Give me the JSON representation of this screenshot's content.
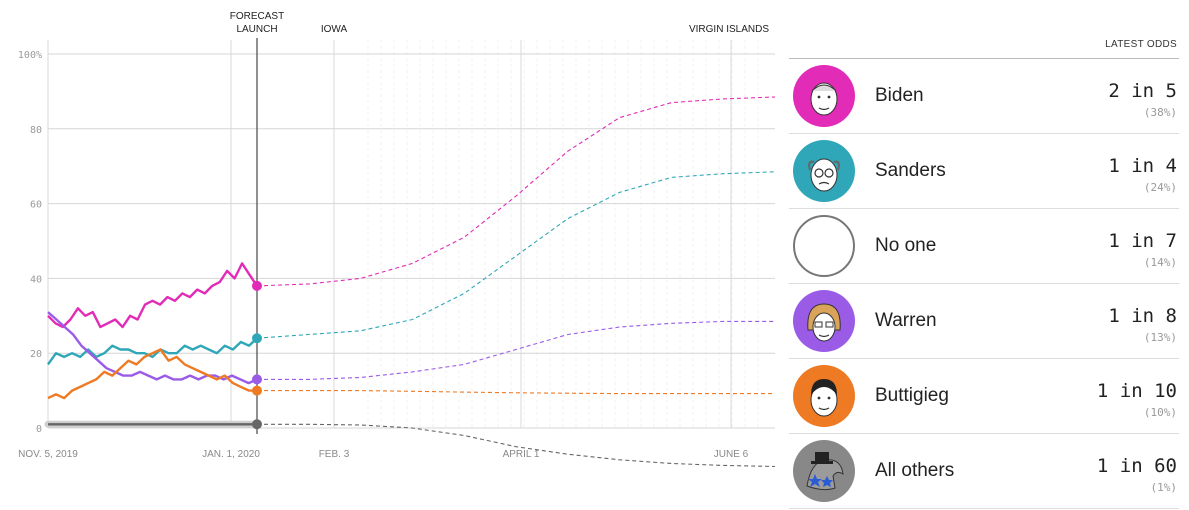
{
  "chart_data": {
    "type": "line",
    "title": "",
    "ylim": [
      0,
      100
    ],
    "y_ticks": [
      "100%",
      "80",
      "60",
      "40",
      "20",
      "0"
    ],
    "x_ticks": [
      "NOV. 5, 2019",
      "JAN. 1, 2020",
      "FEB. 3",
      "APRIL 1",
      "JUNE 6"
    ],
    "markers": [
      "FORECAST",
      "LAUNCH",
      "IOWA",
      "VIRGIN ISLANDS"
    ],
    "series": [
      {
        "name": "Biden",
        "color": "#e22bb6",
        "history": [
          30,
          28,
          27,
          29,
          32,
          30,
          31,
          27,
          28,
          29,
          27,
          30,
          29,
          33,
          34,
          33,
          35,
          34,
          36,
          35,
          37,
          36,
          38,
          39,
          42,
          40,
          44,
          41,
          38
        ],
        "projection": [
          38,
          38.5,
          40,
          44,
          51,
          62,
          74,
          83,
          87,
          88,
          88.5
        ]
      },
      {
        "name": "Sanders",
        "color": "#2fa7b8",
        "history": [
          17,
          20,
          19,
          20,
          19,
          21,
          19,
          20,
          22,
          21,
          21,
          20,
          20,
          19,
          21,
          20,
          20,
          22,
          21,
          22,
          21,
          20,
          22,
          21,
          23,
          22,
          24
        ],
        "projection": [
          24,
          25,
          26,
          29,
          36,
          46,
          56,
          63,
          67,
          68,
          68.5
        ]
      },
      {
        "name": "Warren",
        "color": "#9a5ce6",
        "history": [
          31,
          29,
          27,
          25,
          22,
          20,
          18,
          16,
          15,
          14,
          14,
          15,
          14,
          13,
          14,
          13,
          13,
          14,
          13,
          14,
          14,
          13,
          14,
          13,
          12,
          13
        ],
        "projection": [
          13,
          13,
          13.5,
          15,
          17,
          21,
          25,
          27,
          28,
          28.5,
          28.5
        ]
      },
      {
        "name": "Buttigieg",
        "color": "#ee7a24",
        "history": [
          8,
          9,
          8,
          10,
          11,
          12,
          13,
          15,
          14,
          16,
          18,
          17,
          19,
          20,
          21,
          18,
          19,
          17,
          16,
          15,
          14,
          13,
          14,
          12,
          11,
          10,
          10
        ],
        "projection": [
          10,
          10,
          10,
          9.8,
          9.6,
          9.4,
          9.3,
          9.2,
          9.2,
          9.2,
          9.2
        ]
      },
      {
        "name": "All others",
        "color": "#666666",
        "history": [
          1,
          1,
          1,
          1,
          1,
          1,
          1,
          1,
          1,
          1,
          1,
          1,
          1,
          1,
          1,
          1,
          1,
          1,
          1,
          1,
          1,
          1,
          1,
          1,
          1,
          1,
          1
        ],
        "projection": [
          1,
          1,
          0.8,
          0,
          -2,
          -5,
          -7,
          -8.5,
          -9.5,
          -10,
          -10.3
        ]
      }
    ]
  },
  "panel": {
    "header": "LATEST ODDS",
    "rows": [
      {
        "name": "Biden",
        "odds": "2 in 5",
        "pct": "(38%)",
        "color": "#e22bb6",
        "icon": "biden-portrait"
      },
      {
        "name": "Sanders",
        "odds": "1 in 4",
        "pct": "(24%)",
        "color": "#2fa7b8",
        "icon": "sanders-portrait"
      },
      {
        "name": "No one",
        "odds": "1 in 7",
        "pct": "(14%)",
        "color": "#888888",
        "icon": "empty-circle"
      },
      {
        "name": "Warren",
        "odds": "1 in 8",
        "pct": "(13%)",
        "color": "#9a5ce6",
        "icon": "warren-portrait"
      },
      {
        "name": "Buttigieg",
        "odds": "1 in 10",
        "pct": "(10%)",
        "color": "#ee7a24",
        "icon": "buttigieg-portrait"
      },
      {
        "name": "All others",
        "odds": "1 in 60",
        "pct": "(1%)",
        "color": "#888888",
        "icon": "donkey-icon"
      }
    ]
  }
}
